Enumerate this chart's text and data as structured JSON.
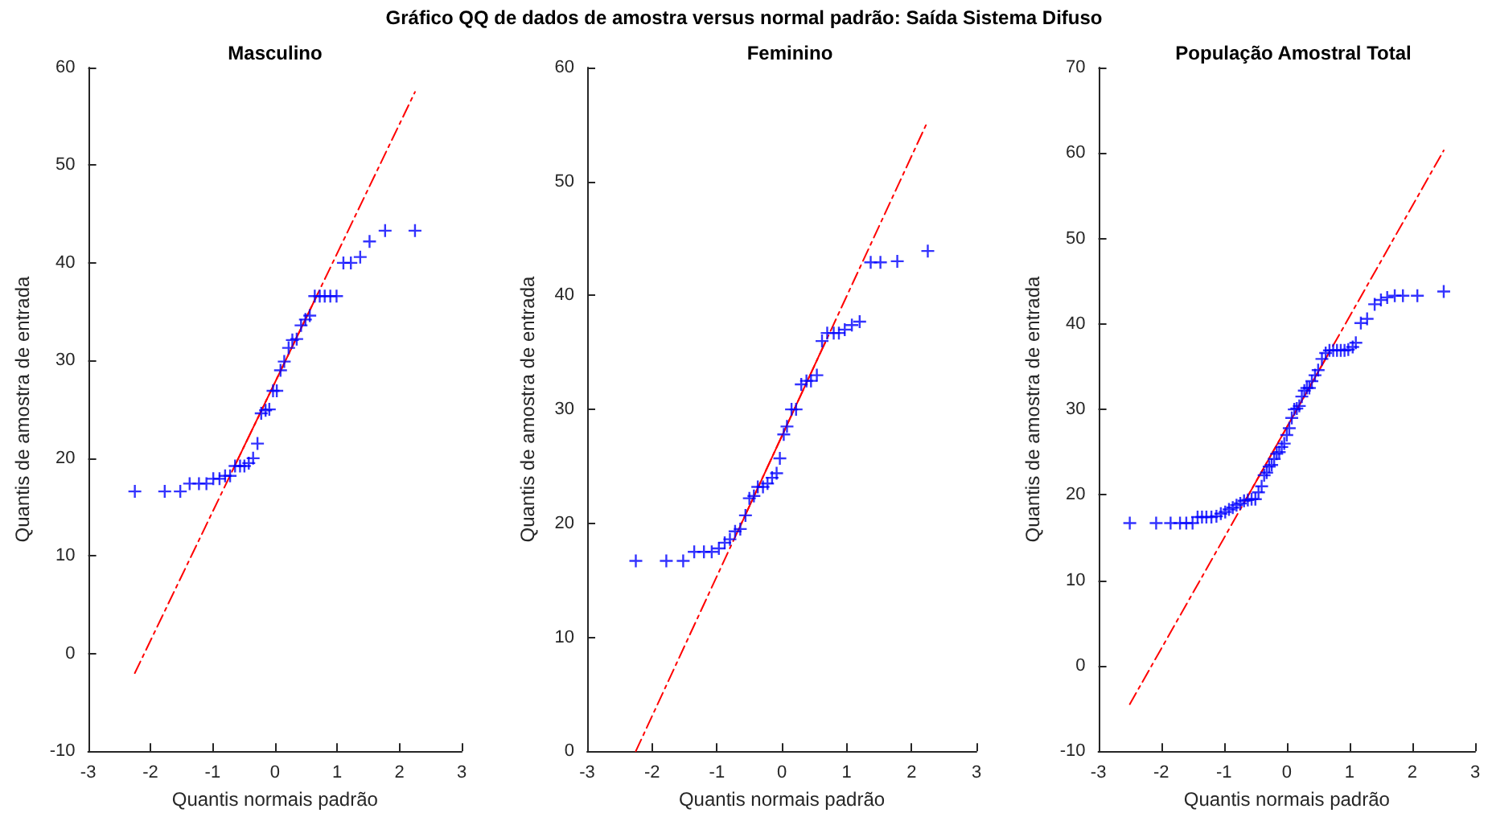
{
  "chart_data": [
    {
      "type": "scatter",
      "title": "Masculino",
      "xlabel": "Quantis normais padrão",
      "ylabel": "Quantis de amostra de entrada",
      "annotations": [
        "Gráfico QQ de dados de amostra versus normal padrão: Saída Sistema Difuso"
      ],
      "xlim": [
        -3,
        3
      ],
      "xticks": [
        -3,
        -2,
        -1,
        0,
        1,
        2,
        3
      ],
      "ylim": [
        -10,
        60
      ],
      "yticks": [
        -10,
        0,
        10,
        20,
        30,
        40,
        50,
        60
      ],
      "grid": false,
      "series": [
        {
          "color": "#0000ff",
          "marker": "cross",
          "x": [
            -2.25,
            -1.77,
            -1.52,
            -1.37,
            -1.22,
            -1.1,
            -0.99,
            -0.89,
            -0.8,
            -0.72,
            -0.64,
            -0.56,
            -0.49,
            -0.42,
            -0.35,
            -0.28,
            -0.22,
            -0.15,
            -0.09,
            -0.03,
            0.03,
            0.09,
            0.15,
            0.22,
            0.28,
            0.35,
            0.42,
            0.49,
            0.56,
            0.64,
            0.72,
            0.8,
            0.89,
            0.99,
            1.1,
            1.22,
            1.37,
            1.52,
            1.77,
            2.25
          ],
          "values": [
            16.6,
            16.6,
            16.6,
            17.4,
            17.4,
            17.4,
            17.9,
            17.9,
            18.2,
            18.2,
            19.2,
            19.2,
            19.2,
            19.5,
            20.0,
            21.5,
            24.6,
            24.9,
            25.0,
            26.9,
            26.9,
            29.0,
            29.9,
            31.3,
            32.1,
            32.2,
            33.6,
            34.2,
            34.6,
            36.6,
            36.6,
            36.6,
            36.6,
            36.6,
            40.0,
            40.0,
            40.6,
            42.2,
            43.3,
            43.3
          ]
        },
        {
          "type": "line",
          "color": "#ff0000",
          "line_style": "dashed",
          "marker": "none",
          "x": [
            -2.25,
            2.25
          ],
          "values": [
            -2.0,
            57.5
          ]
        },
        {
          "type": "line",
          "color": "#ff0000",
          "line_style": "solid",
          "marker": "none",
          "x": [
            -0.67,
            0.67
          ],
          "values": [
            18.9,
            36.6
          ]
        }
      ]
    },
    {
      "type": "scatter",
      "title": "Feminino",
      "xlabel": "Quantis normais padrão",
      "ylabel": "Quantis de amostra de entrada",
      "xlim": [
        -3,
        3
      ],
      "xticks": [
        -3,
        -2,
        -1,
        0,
        1,
        2,
        3
      ],
      "ylim": [
        0,
        60
      ],
      "yticks": [
        0,
        10,
        20,
        30,
        40,
        50,
        60
      ],
      "grid": false,
      "series": [
        {
          "color": "#0000ff",
          "marker": "cross",
          "x": [
            -2.25,
            -1.78,
            -1.52,
            -1.35,
            -1.2,
            -1.08,
            -0.97,
            -0.88,
            -0.8,
            -0.72,
            -0.64,
            -0.56,
            -0.5,
            -0.43,
            -0.37,
            -0.29,
            -0.22,
            -0.15,
            -0.08,
            -0.03,
            0.03,
            0.08,
            0.15,
            0.22,
            0.3,
            0.38,
            0.45,
            0.54,
            0.62,
            0.7,
            0.8,
            0.88,
            0.97,
            1.08,
            1.2,
            1.37,
            1.52,
            1.78,
            2.25
          ],
          "values": [
            16.7,
            16.7,
            16.7,
            17.5,
            17.5,
            17.5,
            17.8,
            18.3,
            18.6,
            19.3,
            19.5,
            20.7,
            22.2,
            22.4,
            23.2,
            23.2,
            23.5,
            24.0,
            24.4,
            25.7,
            27.8,
            28.5,
            30.0,
            30.0,
            32.2,
            32.5,
            32.5,
            33.0,
            36.0,
            36.7,
            36.7,
            36.7,
            37.0,
            37.4,
            37.7,
            42.9,
            42.9,
            43.0,
            43.9
          ]
        },
        {
          "type": "line",
          "color": "#ff0000",
          "line_style": "dashed",
          "marker": "none",
          "x": [
            -2.25,
            2.25
          ],
          "values": [
            0,
            55.3
          ]
        },
        {
          "type": "line",
          "color": "#ff0000",
          "line_style": "solid",
          "marker": "none",
          "x": [
            -0.67,
            0.67
          ],
          "values": [
            19.4,
            35.9
          ]
        }
      ]
    },
    {
      "type": "scatter",
      "title": "População Amostral Total",
      "xlabel": "Quantis normais padrão",
      "ylabel": "Quantis de amostra de entrada",
      "xlim": [
        -3,
        3
      ],
      "xticks": [
        -3,
        -2,
        -1,
        0,
        1,
        2,
        3
      ],
      "ylim": [
        -10,
        70
      ],
      "yticks": [
        -10,
        0,
        10,
        20,
        30,
        40,
        50,
        60,
        70
      ],
      "grid": false,
      "series": [
        {
          "color": "#0000ff",
          "marker": "cross",
          "x": [
            -2.5,
            -2.08,
            -1.85,
            -1.7,
            -1.6,
            -1.5,
            -1.42,
            -1.35,
            -1.28,
            -1.2,
            -1.12,
            -1.05,
            -0.98,
            -0.92,
            -0.86,
            -0.8,
            -0.74,
            -0.68,
            -0.62,
            -0.56,
            -0.5,
            -0.45,
            -0.4,
            -0.36,
            -0.32,
            -0.28,
            -0.24,
            -0.2,
            -0.16,
            -0.12,
            -0.08,
            -0.04,
            0,
            0.04,
            0.08,
            0.12,
            0.16,
            0.2,
            0.24,
            0.28,
            0.32,
            0.36,
            0.4,
            0.45,
            0.5,
            0.56,
            0.62,
            0.68,
            0.74,
            0.8,
            0.86,
            0.92,
            0.98,
            1.05,
            1.1,
            1.18,
            1.28,
            1.4,
            1.5,
            1.6,
            1.72,
            1.85,
            2.08,
            2.5
          ],
          "values": [
            16.7,
            16.7,
            16.7,
            16.7,
            16.7,
            16.7,
            17.4,
            17.4,
            17.4,
            17.4,
            17.5,
            17.8,
            18.0,
            18.3,
            18.5,
            18.8,
            19.0,
            19.3,
            19.4,
            19.5,
            19.5,
            20.3,
            21.0,
            22.3,
            22.6,
            23.3,
            23.5,
            24.2,
            24.8,
            25.0,
            25.6,
            26.0,
            27.0,
            27.8,
            29.0,
            30.0,
            30.1,
            30.4,
            31.5,
            32.2,
            32.5,
            32.5,
            33.3,
            34.0,
            34.6,
            35.9,
            36.6,
            36.9,
            36.9,
            36.9,
            36.9,
            36.9,
            37.0,
            37.3,
            37.8,
            40.1,
            40.6,
            42.3,
            42.8,
            43.1,
            43.3,
            43.3,
            43.3,
            43.8
          ]
        },
        {
          "type": "line",
          "color": "#ff0000",
          "line_style": "dashed",
          "marker": "none",
          "x": [
            -2.5,
            2.5
          ],
          "values": [
            -4.5,
            60.3
          ]
        },
        {
          "type": "line",
          "color": "#ff0000",
          "line_style": "solid",
          "marker": "none",
          "x": [
            -0.67,
            0.67
          ],
          "values": [
            19.2,
            36.6
          ]
        }
      ]
    }
  ]
}
